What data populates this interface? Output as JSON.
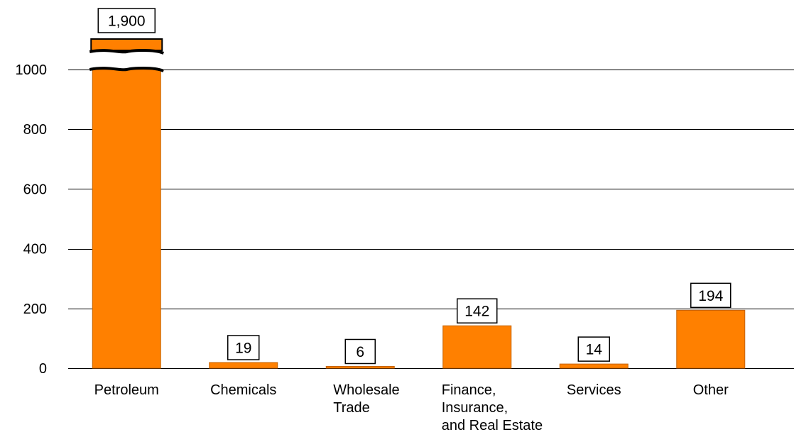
{
  "chart_data": {
    "type": "bar",
    "title": "",
    "xlabel": "",
    "ylabel": "",
    "ylim": [
      0,
      1000
    ],
    "y_ticks": [
      0,
      200,
      400,
      600,
      800,
      1000
    ],
    "grid": true,
    "axis_break": true,
    "colors": {
      "bar": "#FF8000",
      "bar_outline": "#c46200",
      "grid": "#000000"
    },
    "categories": [
      [
        "Petroleum"
      ],
      [
        "Chemicals"
      ],
      [
        "Wholesale",
        "Trade"
      ],
      [
        "Finance,",
        "Insurance,",
        "and Real Estate"
      ],
      [
        "Services"
      ],
      [
        "Other"
      ]
    ],
    "values": [
      1900,
      19,
      6,
      142,
      14,
      194
    ],
    "data_labels": [
      "1,900",
      "19",
      "6",
      "142",
      "14",
      "194"
    ]
  }
}
